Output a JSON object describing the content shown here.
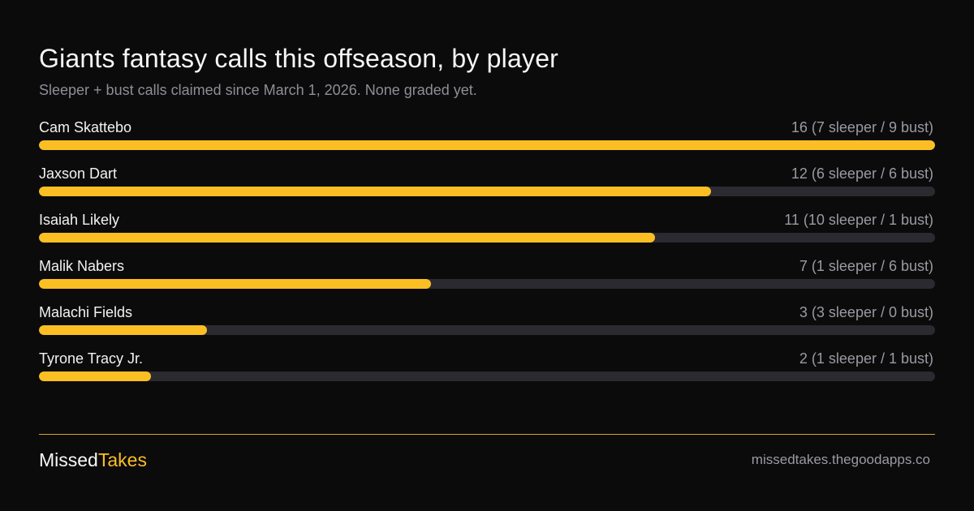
{
  "header": {
    "title": "Giants fantasy calls this offseason, by player",
    "subtitle": "Sleeper + bust calls claimed since March 1, 2026. None graded yet."
  },
  "colors": {
    "background": "#0b0b0c",
    "bar_fill": "#fbbf24",
    "bar_track": "#2a2a30",
    "divider": "#d8a42a"
  },
  "chart_data": {
    "type": "bar",
    "orientation": "horizontal",
    "title": "Giants fantasy calls this offseason, by player",
    "subtitle": "Sleeper + bust calls claimed since March 1, 2026. None graded yet.",
    "categories": [
      "Cam Skattebo",
      "Jaxson Dart",
      "Isaiah Likely",
      "Malik Nabers",
      "Malachi Fields",
      "Tyrone Tracy Jr."
    ],
    "values": [
      16,
      12,
      11,
      7,
      3,
      2
    ],
    "series": [
      {
        "name": "sleeper",
        "values": [
          7,
          6,
          10,
          1,
          3,
          1
        ]
      },
      {
        "name": "bust",
        "values": [
          9,
          6,
          1,
          6,
          0,
          1
        ]
      }
    ],
    "value_labels": [
      "16 (7 sleeper / 9 bust)",
      "12 (6 sleeper / 6 bust)",
      "11 (10 sleeper / 1 bust)",
      "7 (1 sleeper / 6 bust)",
      "3 (3 sleeper / 0 bust)",
      "2 (1 sleeper / 1 bust)"
    ],
    "xlim": [
      0,
      16
    ],
    "grid": false,
    "legend": "none"
  },
  "footer": {
    "brand_part1": "Missed",
    "brand_part2": "Takes",
    "site": "missedtakes.thegoodapps.co"
  }
}
